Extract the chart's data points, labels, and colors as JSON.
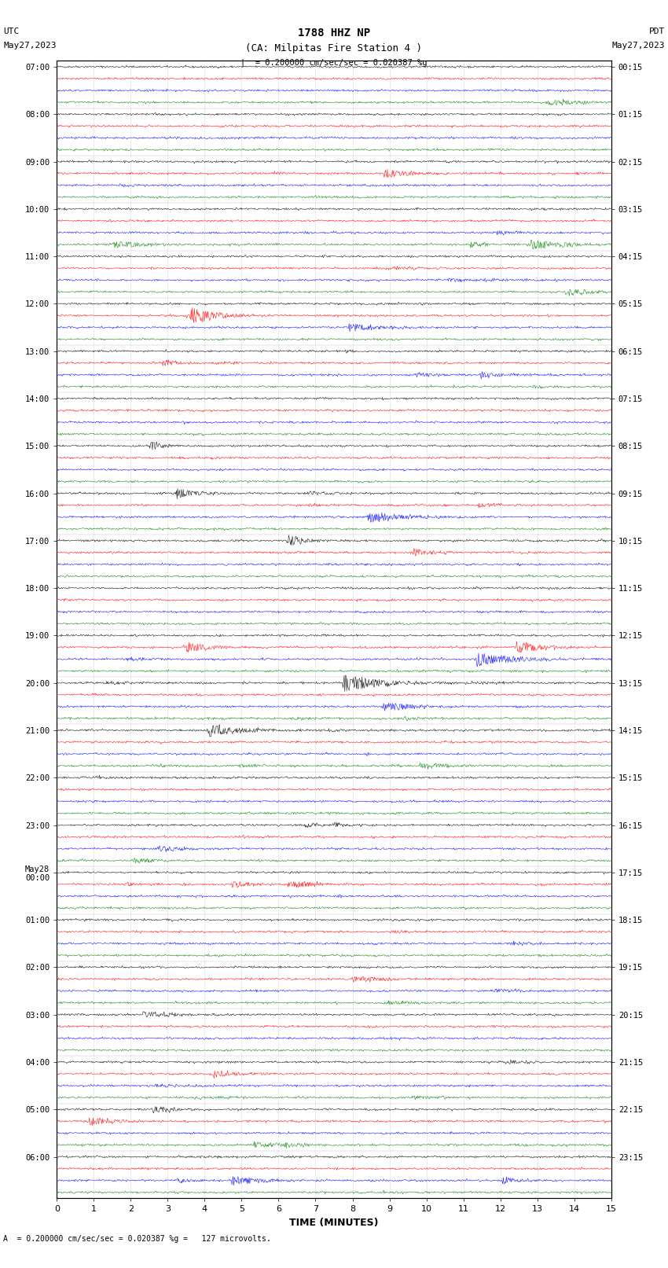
{
  "title_line1": "1788 HHZ NP",
  "title_line2": "(CA: Milpitas Fire Station 4 )",
  "scale_text": "= 0.200000 cm/sec/sec = 0.020387 %g",
  "bottom_label": "A  = 0.200000 cm/sec/sec = 0.020387 %g =   127 microvolts.",
  "xlabel": "TIME (MINUTES)",
  "left_label_top": "UTC",
  "left_date": "May27,2023",
  "right_label_top": "PDT",
  "right_date": "May27,2023",
  "left_times": [
    "07:00",
    "08:00",
    "09:00",
    "10:00",
    "11:00",
    "12:00",
    "13:00",
    "14:00",
    "15:00",
    "16:00",
    "17:00",
    "18:00",
    "19:00",
    "20:00",
    "21:00",
    "22:00",
    "23:00",
    "May28\n00:00",
    "01:00",
    "02:00",
    "03:00",
    "04:00",
    "05:00",
    "06:00"
  ],
  "right_times": [
    "00:15",
    "01:15",
    "02:15",
    "03:15",
    "04:15",
    "05:15",
    "06:15",
    "07:15",
    "08:15",
    "09:15",
    "10:15",
    "11:15",
    "12:15",
    "13:15",
    "14:15",
    "15:15",
    "16:15",
    "17:15",
    "18:15",
    "19:15",
    "20:15",
    "21:15",
    "22:15",
    "23:15"
  ],
  "n_rows": 96,
  "n_hours": 24,
  "colors_cycle": [
    "black",
    "red",
    "blue",
    "green"
  ],
  "bg_color": "white",
  "trace_amplitude": 0.35,
  "noise_scale": 0.12,
  "event_probability": 0.003,
  "event_amplitude": 1.5
}
